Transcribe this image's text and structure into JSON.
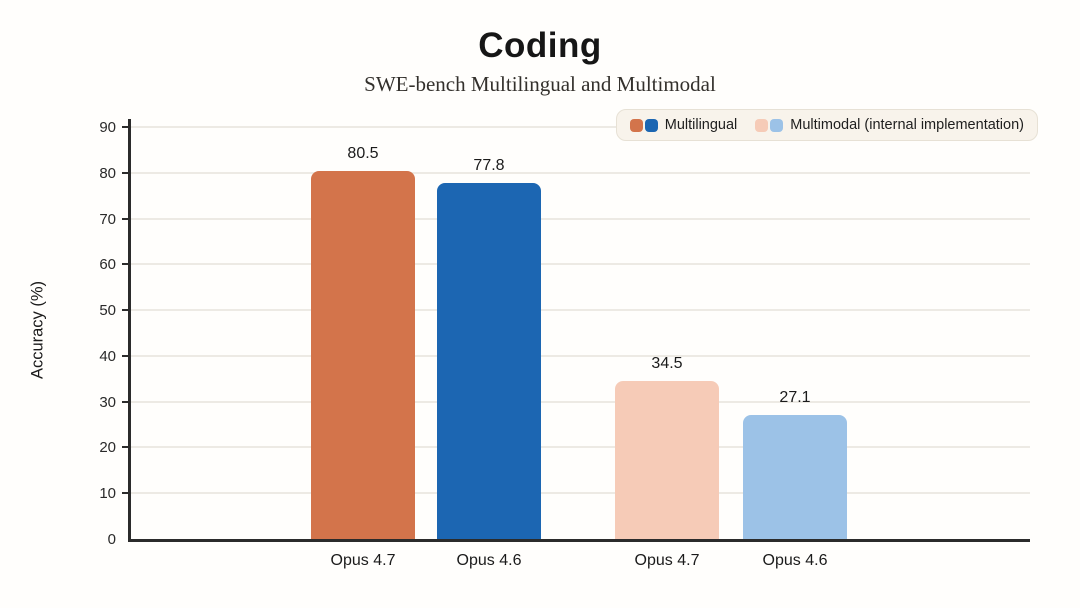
{
  "title": "Coding",
  "subtitle": "SWE-bench Multilingual and Multimodal",
  "legend": {
    "position": "top-right",
    "items": [
      {
        "label": "Multilingual",
        "colors": [
          "#d3744b",
          "#1c66b2"
        ]
      },
      {
        "label": "Multimodal (internal implementation)",
        "colors": [
          "#f6cbb7",
          "#9cc2e7"
        ]
      }
    ]
  },
  "chart_data": {
    "type": "bar",
    "title": "Coding",
    "subtitle": "SWE-bench Multilingual and Multimodal",
    "categories": [
      "Opus 4.7",
      "Opus 4.6",
      "Opus 4.7",
      "Opus 4.6"
    ],
    "series": [
      {
        "name": "Multilingual",
        "values": [
          80.5,
          77.8,
          null,
          null
        ]
      },
      {
        "name": "Multimodal (internal implementation)",
        "values": [
          null,
          null,
          34.5,
          27.1
        ]
      }
    ],
    "bars": [
      {
        "category": "Opus 4.7",
        "series": "Multilingual",
        "value": 80.5,
        "value_label": "80.5",
        "color": "#d3744b"
      },
      {
        "category": "Opus 4.6",
        "series": "Multilingual",
        "value": 77.8,
        "value_label": "77.8",
        "color": "#1c66b2"
      },
      {
        "category": "Opus 4.7",
        "series": "Multimodal (internal implementation)",
        "value": 34.5,
        "value_label": "34.5",
        "color": "#f6cbb7"
      },
      {
        "category": "Opus 4.6",
        "series": "Multimodal (internal implementation)",
        "value": 27.1,
        "value_label": "27.1",
        "color": "#9cc2e7"
      }
    ],
    "xlabel": "",
    "ylabel": "Accuracy (%)",
    "ylim": [
      0,
      90
    ],
    "yticks": [
      0,
      10,
      20,
      30,
      40,
      50,
      60,
      70,
      80,
      90
    ],
    "grid": true,
    "legend_position": "top-right",
    "colors": {
      "axis": "#2b2b2b",
      "gridline": "#edeae4",
      "background": "#fffefc",
      "legend_background": "#f8f3eb"
    }
  }
}
